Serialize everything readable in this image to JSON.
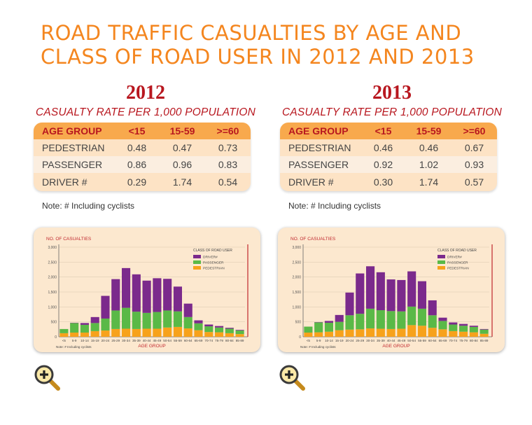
{
  "title": "ROAD TRAFFIC CASUALTIES BY AGE AND CLASS OF ROAD USER IN 2012 AND 2013",
  "panels": [
    {
      "year": "2012",
      "rate_title": "CASUALTY RATE PER 1,000 POPULATION",
      "table": {
        "headers": [
          "AGE GROUP",
          "<15",
          "15-59",
          ">=60"
        ],
        "rows": [
          [
            "PEDESTRIAN",
            "0.48",
            "0.47",
            "0.73"
          ],
          [
            "PASSENGER",
            "0.86",
            "0.96",
            "0.83"
          ],
          [
            "DRIVER #",
            "0.29",
            "1.74",
            "0.54"
          ]
        ]
      },
      "note": "Note:  #  Including cyclists"
    },
    {
      "year": "2013",
      "rate_title": "CASUALTY RATE PER 1,000 POPULATION",
      "table": {
        "headers": [
          "AGE GROUP",
          "<15",
          "15-59",
          ">=60"
        ],
        "rows": [
          [
            "PEDESTRIAN",
            "0.46",
            "0.46",
            "0.67"
          ],
          [
            "PASSENGER",
            "0.92",
            "1.02",
            "0.93"
          ],
          [
            "DRIVER #",
            "0.30",
            "1.74",
            "0.57"
          ]
        ]
      },
      "note": "Note:  #  Including cyclists"
    }
  ],
  "colors": {
    "title": "#f4861f",
    "year": "#b8171f",
    "driver": "#7b2a8c",
    "passenger": "#5ab947",
    "pedestrian": "#f7a21b",
    "axis_red": "#c0272d"
  },
  "icons": [
    "zoom-in-icon",
    "zoom-in-icon"
  ],
  "chart_data": [
    {
      "type": "bar",
      "stacked": true,
      "ylabel": "NO. OF CASUALTIES",
      "xlabel": "AGE GROUP",
      "ylim": [
        0,
        3000
      ],
      "yticks": [
        "0",
        "500",
        "1,000",
        "1,500",
        "2,000",
        "2,500",
        "3,000"
      ],
      "legend_title": "CLASS OF ROAD USER",
      "legend_position": "top-right",
      "note": "Note:  # Including cyclists",
      "categories": [
        "<5",
        "5-9",
        "10-14",
        "15-19",
        "20-24",
        "25-29",
        "30-34",
        "35-39",
        "40-44",
        "45-49",
        "50-54",
        "55-59",
        "60-64",
        "65-69",
        "70-74",
        "75-79",
        "80-84",
        "85-89"
      ],
      "series": [
        {
          "name": "DRIVER#",
          "values": [
            0,
            10,
            60,
            200,
            760,
            1050,
            1330,
            1250,
            1080,
            1130,
            1060,
            830,
            450,
            100,
            60,
            50,
            30,
            20
          ]
        },
        {
          "name": "PASSENGER",
          "values": [
            140,
            320,
            260,
            270,
            400,
            620,
            700,
            580,
            530,
            560,
            570,
            520,
            380,
            230,
            190,
            160,
            150,
            120
          ]
        },
        {
          "name": "PEDESTRIAN",
          "values": [
            120,
            140,
            140,
            190,
            210,
            260,
            270,
            260,
            270,
            270,
            310,
            330,
            280,
            220,
            160,
            150,
            120,
            90
          ]
        }
      ]
    },
    {
      "type": "bar",
      "stacked": true,
      "ylabel": "NO. OF CASUALTIES",
      "xlabel": "AGE GROUP",
      "ylim": [
        0,
        3000
      ],
      "yticks": [
        "0",
        "500",
        "1,000",
        "1,500",
        "2,000",
        "2,500",
        "3,000"
      ],
      "legend_title": "CLASS OF ROAD USER",
      "legend_position": "top-right",
      "note": "Note:  # Including cyclists",
      "categories": [
        "<5",
        "5-9",
        "10-14",
        "15-19",
        "20-24",
        "25-29",
        "30-34",
        "35-39",
        "40-44",
        "45-49",
        "50-54",
        "55-59",
        "60-64",
        "65-69",
        "70-74",
        "75-79",
        "80-84",
        "85-89"
      ],
      "series": [
        {
          "name": "DRIVER#",
          "values": [
            0,
            10,
            60,
            230,
            760,
            1350,
            1420,
            1270,
            1060,
            1050,
            1180,
            920,
            500,
            110,
            70,
            60,
            40,
            20
          ]
        },
        {
          "name": "PASSENGER",
          "values": [
            200,
            330,
            300,
            280,
            480,
            520,
            660,
            620,
            600,
            580,
            620,
            570,
            420,
            280,
            220,
            200,
            180,
            140
          ]
        },
        {
          "name": "PEDESTRIAN",
          "values": [
            140,
            150,
            170,
            220,
            240,
            250,
            280,
            270,
            260,
            270,
            390,
            370,
            300,
            250,
            190,
            170,
            150,
            100
          ]
        }
      ]
    }
  ]
}
